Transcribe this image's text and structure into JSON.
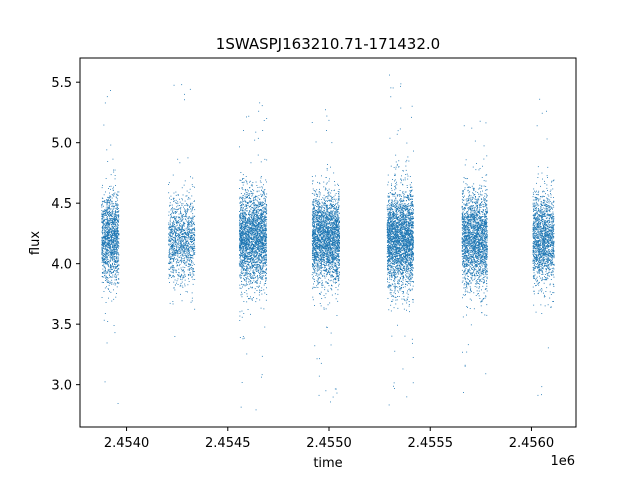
{
  "chart_data": {
    "type": "scatter",
    "title": "1SWASPJ163210.71-171432.0",
    "xlabel": "time",
    "ylabel": "flux",
    "x_offset_label": "1e6",
    "xlim": [
      2453770,
      2456220
    ],
    "ylim": [
      2.65,
      5.7
    ],
    "x_ticks": [
      2454000,
      2454500,
      2455000,
      2455500,
      2456000
    ],
    "x_tick_labels": [
      "2.4540",
      "2.4545",
      "2.4550",
      "2.4555",
      "2.4560"
    ],
    "y_ticks": [
      3.0,
      3.5,
      4.0,
      4.5,
      5.0,
      5.5
    ],
    "y_tick_labels": [
      "3.0",
      "3.5",
      "4.0",
      "4.5",
      "5.0",
      "5.5"
    ],
    "grid": false,
    "series": [
      {
        "color": "#1f77b4",
        "marker": "point",
        "seasons": [
          {
            "x_start": 2453875,
            "x_end": 2453960,
            "y_center": 4.22,
            "y_spread": 0.18,
            "y_min": 2.8,
            "y_max": 5.55,
            "count": 1400
          },
          {
            "x_start": 2454205,
            "x_end": 2454335,
            "y_center": 4.2,
            "y_spread": 0.17,
            "y_min": 2.79,
            "y_max": 5.57,
            "count": 1200
          },
          {
            "x_start": 2454555,
            "x_end": 2454690,
            "y_center": 4.22,
            "y_spread": 0.19,
            "y_min": 2.79,
            "y_max": 5.4,
            "count": 2600
          },
          {
            "x_start": 2454915,
            "x_end": 2455050,
            "y_center": 4.22,
            "y_spread": 0.18,
            "y_min": 2.85,
            "y_max": 5.3,
            "count": 2600
          },
          {
            "x_start": 2455285,
            "x_end": 2455415,
            "y_center": 4.2,
            "y_spread": 0.2,
            "y_min": 2.8,
            "y_max": 5.57,
            "count": 2800
          },
          {
            "x_start": 2455655,
            "x_end": 2455780,
            "y_center": 4.2,
            "y_spread": 0.2,
            "y_min": 2.8,
            "y_max": 5.42,
            "count": 2200
          },
          {
            "x_start": 2456005,
            "x_end": 2456110,
            "y_center": 4.2,
            "y_spread": 0.19,
            "y_min": 2.8,
            "y_max": 5.52,
            "count": 1600
          }
        ]
      }
    ]
  }
}
